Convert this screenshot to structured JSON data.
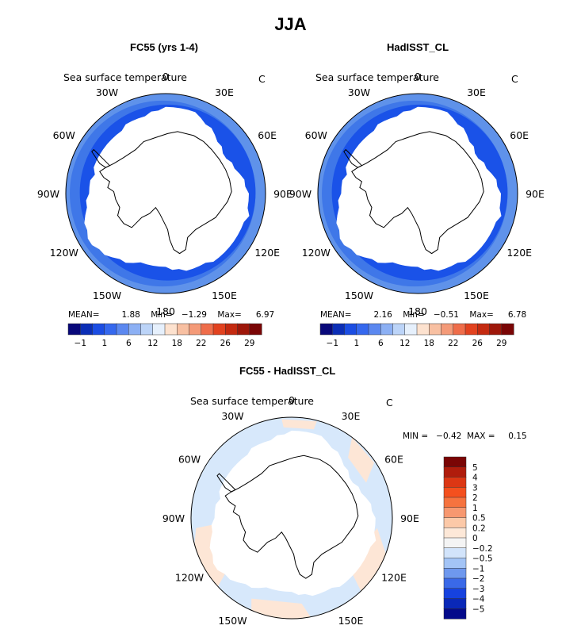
{
  "title": "JJA",
  "colors": {
    "ocean_dark": "#1a52e8",
    "ocean_mid": "#3f77e8",
    "ocean_light": "#5f92ea",
    "diff_pos": "#fde6d6",
    "diff_neg": "#d7e8fb",
    "coast": "#000000"
  },
  "panels": {
    "top_left": {
      "title": "FC55 (yrs 1-4)",
      "variable": "Sea surface temperature",
      "unit": "C",
      "stats": {
        "mean_label": "MEAN=",
        "mean": "1.88",
        "min_label": "Min=",
        "min": "−1.29",
        "max_label": "Max=",
        "max": "6.97"
      }
    },
    "top_right": {
      "title": "HadISST_CL",
      "variable": "Sea surface temperature",
      "unit": "C",
      "stats": {
        "mean_label": "MEAN=",
        "mean": "2.16",
        "min_label": "Min=",
        "min": "−0.51",
        "max_label": "Max=",
        "max": "6.78"
      }
    },
    "bottom": {
      "title": "FC55 - HadISST_CL",
      "variable": "Sea surface temperature",
      "unit": "C",
      "minmax": "MIN =   −0.42  MAX =     0.15"
    }
  },
  "lon_labels": [
    "0",
    "30E",
    "60E",
    "90E",
    "120E",
    "150E",
    "180",
    "150W",
    "120W",
    "90W",
    "60W",
    "30W"
  ],
  "chart_data": [
    {
      "type": "heatmap",
      "projection": "south polar stereographic",
      "title": "FC55 (yrs 1-4)",
      "variable": "Sea surface temperature",
      "unit": "C",
      "mean": 1.88,
      "min": -1.29,
      "max": 6.97,
      "colorbar": {
        "tick_labels": [
          "−1",
          "1",
          "6",
          "12",
          "18",
          "22",
          "26",
          "29"
        ],
        "colors": [
          "#08087a",
          "#0b2eb6",
          "#1b4de3",
          "#3568ee",
          "#5b88f0",
          "#8cb0f4",
          "#bcd4f8",
          "#e6f0fc",
          "#fde2cf",
          "#f8c0a2",
          "#f49a78",
          "#ef6d4a",
          "#e2421f",
          "#c42a10",
          "#9e170a",
          "#7a0505"
        ]
      }
    },
    {
      "type": "heatmap",
      "projection": "south polar stereographic",
      "title": "HadISST_CL",
      "variable": "Sea surface temperature",
      "unit": "C",
      "mean": 2.16,
      "min": -0.51,
      "max": 6.78,
      "colorbar": {
        "tick_labels": [
          "−1",
          "1",
          "6",
          "12",
          "18",
          "22",
          "26",
          "29"
        ],
        "colors": [
          "#08087a",
          "#0b2eb6",
          "#1b4de3",
          "#3568ee",
          "#5b88f0",
          "#8cb0f4",
          "#bcd4f8",
          "#e6f0fc",
          "#fde2cf",
          "#f8c0a2",
          "#f49a78",
          "#ef6d4a",
          "#e2421f",
          "#c42a10",
          "#9e170a",
          "#7a0505"
        ]
      }
    },
    {
      "type": "heatmap",
      "projection": "south polar stereographic",
      "title": "FC55 - HadISST_CL",
      "variable": "Sea surface temperature",
      "unit": "C",
      "min": -0.42,
      "max": 0.15,
      "colorbar": {
        "tick_labels": [
          "5",
          "4",
          "3",
          "2",
          "1",
          "0.5",
          "0.2",
          "0",
          "−0.2",
          "−0.5",
          "−1",
          "−2",
          "−3",
          "−4",
          "−5"
        ],
        "colors": [
          "#7a0505",
          "#b01c0c",
          "#dc3714",
          "#f4501e",
          "#f6733f",
          "#f79870",
          "#fcc9a8",
          "#fde8d8",
          "#f4f4f4",
          "#d2e4fb",
          "#a3c4f6",
          "#6e98ee",
          "#3a69e8",
          "#1642df",
          "#0a28b8",
          "#040a8a"
        ]
      }
    }
  ]
}
